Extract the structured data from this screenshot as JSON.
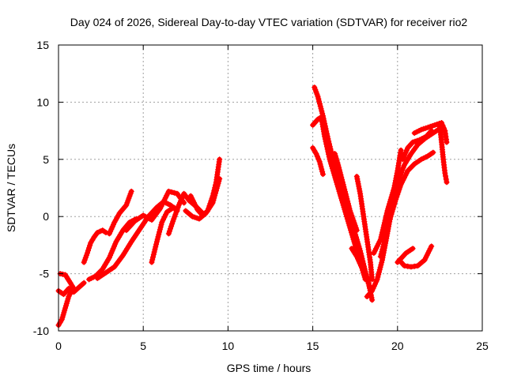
{
  "chart_data": {
    "type": "scatter",
    "title": "Day 024 of 2026, Sidereal Day-to-day VTEC variation (SDTVAR) for receiver rio2",
    "xlabel": "GPS time / hours",
    "ylabel": "SDTVAR / TECUs",
    "xlim": [
      0,
      25
    ],
    "ylim": [
      -10,
      15
    ],
    "xticks": [
      0,
      5,
      10,
      15,
      20,
      25
    ],
    "yticks": [
      -10,
      -5,
      0,
      5,
      10,
      15
    ],
    "grid": true,
    "marker": "plus",
    "color": "#ff0000",
    "tracks": [
      [
        [
          0.0,
          -6.5
        ],
        [
          0.3,
          -6.8
        ],
        [
          0.6,
          -6.3
        ],
        [
          0.9,
          -6.6
        ],
        [
          1.2,
          -6.2
        ],
        [
          1.5,
          -5.8
        ]
      ],
      [
        [
          0.0,
          -9.5
        ],
        [
          0.2,
          -9.0
        ],
        [
          0.4,
          -8.0
        ],
        [
          0.6,
          -7.0
        ],
        [
          0.8,
          -6.4
        ]
      ],
      [
        [
          0.1,
          -5.0
        ],
        [
          0.4,
          -5.1
        ],
        [
          0.7,
          -5.8
        ],
        [
          0.9,
          -6.3
        ]
      ],
      [
        [
          1.5,
          -4.0
        ],
        [
          1.7,
          -3.2
        ],
        [
          1.9,
          -2.3
        ],
        [
          2.1,
          -1.8
        ],
        [
          2.3,
          -1.4
        ],
        [
          2.6,
          -1.2
        ],
        [
          2.8,
          -1.4
        ]
      ],
      [
        [
          1.8,
          -5.5
        ],
        [
          2.2,
          -5.2
        ],
        [
          2.6,
          -4.6
        ],
        [
          3.0,
          -3.6
        ],
        [
          3.4,
          -2.2
        ],
        [
          3.8,
          -1.2
        ],
        [
          4.2,
          -0.5
        ],
        [
          4.6,
          -0.2
        ]
      ],
      [
        [
          3.0,
          -1.5
        ],
        [
          3.3,
          -0.5
        ],
        [
          3.6,
          0.3
        ],
        [
          4.0,
          1.0
        ],
        [
          4.3,
          2.2
        ]
      ],
      [
        [
          2.3,
          -5.4
        ],
        [
          2.8,
          -4.9
        ],
        [
          3.3,
          -4.4
        ],
        [
          3.8,
          -3.4
        ],
        [
          4.3,
          -2.2
        ],
        [
          4.8,
          -1.1
        ],
        [
          5.3,
          0.0
        ],
        [
          5.8,
          0.8
        ],
        [
          6.2,
          1.3
        ],
        [
          6.6,
          1.0
        ],
        [
          7.0,
          0.5
        ]
      ],
      [
        [
          4.0,
          -1.2
        ],
        [
          4.5,
          -0.4
        ],
        [
          5.0,
          0.1
        ],
        [
          5.5,
          -0.3
        ],
        [
          6.0,
          0.7
        ],
        [
          6.5,
          2.2
        ],
        [
          7.0,
          2.0
        ],
        [
          7.4,
          1.2
        ]
      ],
      [
        [
          5.5,
          -4.0
        ],
        [
          5.8,
          -2.2
        ],
        [
          6.1,
          -0.5
        ],
        [
          6.4,
          0.4
        ],
        [
          6.8,
          0.8
        ]
      ],
      [
        [
          6.5,
          -1.5
        ],
        [
          6.8,
          -0.2
        ],
        [
          7.1,
          1.0
        ],
        [
          7.4,
          2.0
        ],
        [
          7.7,
          1.4
        ],
        [
          8.1,
          0.9
        ],
        [
          8.5,
          0.3
        ]
      ],
      [
        [
          7.5,
          0.5
        ],
        [
          7.9,
          0.0
        ],
        [
          8.3,
          -0.2
        ],
        [
          8.7,
          0.3
        ],
        [
          9.1,
          1.2
        ],
        [
          9.5,
          3.3
        ]
      ],
      [
        [
          7.8,
          1.8
        ],
        [
          8.2,
          0.6
        ],
        [
          8.5,
          0.1
        ],
        [
          8.8,
          0.5
        ],
        [
          9.1,
          1.8
        ],
        [
          9.3,
          3.0
        ],
        [
          9.5,
          5.0
        ]
      ],
      [
        [
          15.0,
          8.0
        ],
        [
          15.3,
          8.5
        ],
        [
          15.5,
          8.7
        ],
        [
          15.7,
          7.0
        ],
        [
          16.0,
          5.0
        ],
        [
          16.4,
          3.0
        ],
        [
          16.8,
          1.0
        ],
        [
          17.2,
          -1.0
        ],
        [
          17.6,
          -3.0
        ],
        [
          18.0,
          -4.5
        ],
        [
          18.3,
          -5.8
        ],
        [
          18.5,
          -7.3
        ]
      ],
      [
        [
          15.1,
          11.3
        ],
        [
          15.3,
          10.5
        ],
        [
          15.6,
          8.8
        ],
        [
          15.9,
          6.8
        ],
        [
          16.2,
          5.0
        ],
        [
          16.6,
          3.0
        ],
        [
          17.0,
          1.0
        ],
        [
          17.4,
          -1.0
        ],
        [
          17.8,
          -3.0
        ],
        [
          18.1,
          -4.8
        ],
        [
          18.4,
          -6.5
        ]
      ],
      [
        [
          15.0,
          6.0
        ],
        [
          15.2,
          5.5
        ],
        [
          15.4,
          4.8
        ],
        [
          15.6,
          3.7
        ]
      ],
      [
        [
          16.3,
          5.5
        ],
        [
          16.5,
          4.5
        ],
        [
          16.8,
          2.8
        ],
        [
          17.2,
          0.5
        ],
        [
          17.6,
          -1.2
        ]
      ],
      [
        [
          17.3,
          -2.8
        ],
        [
          17.6,
          -3.5
        ],
        [
          17.9,
          -4.5
        ],
        [
          18.1,
          -5.5
        ]
      ],
      [
        [
          17.6,
          3.5
        ],
        [
          17.8,
          2.0
        ],
        [
          18.0,
          0.0
        ],
        [
          18.2,
          -2.0
        ],
        [
          18.4,
          -4.0
        ],
        [
          18.5,
          -5.5
        ]
      ],
      [
        [
          18.2,
          -7.0
        ],
        [
          18.5,
          -6.5
        ],
        [
          18.8,
          -5.5
        ],
        [
          19.1,
          -3.8
        ],
        [
          19.4,
          -1.5
        ],
        [
          19.7,
          1.0
        ],
        [
          20.0,
          3.0
        ],
        [
          20.4,
          4.5
        ],
        [
          20.8,
          5.5
        ],
        [
          21.2,
          6.3
        ],
        [
          21.6,
          6.8
        ],
        [
          22.0,
          7.2
        ],
        [
          22.4,
          7.6
        ]
      ],
      [
        [
          19.0,
          -3.5
        ],
        [
          19.3,
          -1.8
        ],
        [
          19.6,
          0.0
        ],
        [
          19.9,
          1.5
        ],
        [
          20.2,
          2.8
        ],
        [
          20.6,
          4.0
        ],
        [
          21.0,
          4.6
        ],
        [
          21.4,
          5.0
        ],
        [
          21.8,
          5.3
        ],
        [
          22.1,
          5.6
        ]
      ],
      [
        [
          18.6,
          -3.2
        ],
        [
          19.0,
          -2.0
        ],
        [
          19.4,
          0.5
        ],
        [
          19.8,
          2.5
        ],
        [
          20.0,
          4.0
        ],
        [
          20.2,
          5.8
        ]
      ],
      [
        [
          20.3,
          5.0
        ],
        [
          20.6,
          6.0
        ],
        [
          20.9,
          6.5
        ],
        [
          21.3,
          6.7
        ],
        [
          21.7,
          7.0
        ],
        [
          22.0,
          7.5
        ]
      ],
      [
        [
          20.0,
          -4.0
        ],
        [
          20.5,
          -3.2
        ],
        [
          20.9,
          -2.8
        ]
      ],
      [
        [
          20.1,
          -3.8
        ],
        [
          20.4,
          -4.3
        ],
        [
          20.8,
          -4.4
        ],
        [
          21.2,
          -4.3
        ],
        [
          21.6,
          -3.8
        ],
        [
          22.0,
          -2.6
        ]
      ],
      [
        [
          21.0,
          7.3
        ],
        [
          21.4,
          7.6
        ],
        [
          21.8,
          7.8
        ],
        [
          22.2,
          8.0
        ],
        [
          22.6,
          8.2
        ],
        [
          22.8,
          7.5
        ],
        [
          22.9,
          6.5
        ]
      ],
      [
        [
          22.5,
          7.8
        ],
        [
          22.6,
          6.5
        ],
        [
          22.7,
          5.0
        ],
        [
          22.8,
          3.8
        ],
        [
          22.9,
          3.0
        ]
      ]
    ]
  }
}
